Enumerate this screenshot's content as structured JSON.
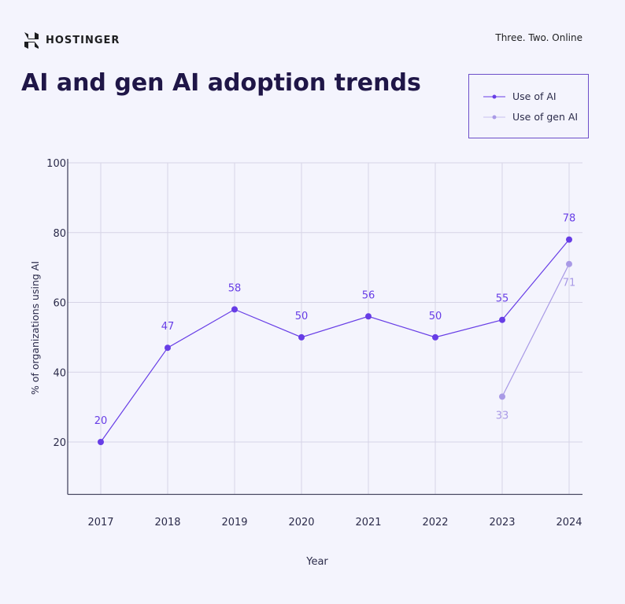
{
  "brand": {
    "name": "HOSTINGER",
    "tagline": "Three. Two. Online"
  },
  "chart_data": {
    "type": "line",
    "title": "AI and gen AI adoption trends",
    "xlabel": "Year",
    "ylabel": "% of organizations using AI",
    "x": [
      "2017",
      "2018",
      "2019",
      "2020",
      "2021",
      "2022",
      "2023",
      "2024"
    ],
    "yticks": [
      20,
      40,
      60,
      80,
      100
    ],
    "ylim": [
      5,
      100
    ],
    "grid": true,
    "legend_position": "top-right",
    "series": [
      {
        "name": "Use of AI",
        "color": "#673de6",
        "values": [
          20,
          47,
          58,
          50,
          56,
          50,
          55,
          78
        ]
      },
      {
        "name": "Use of gen AI",
        "color": "#a99ae6",
        "values": [
          null,
          null,
          null,
          null,
          null,
          null,
          33,
          71
        ]
      }
    ]
  }
}
